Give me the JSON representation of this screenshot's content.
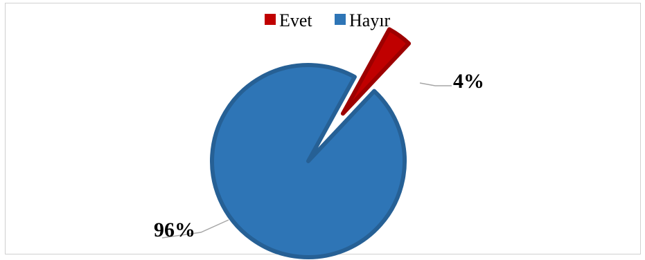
{
  "chart_data": {
    "type": "pie",
    "title": "",
    "categories": [
      "Evet",
      "Hayır"
    ],
    "values": [
      4,
      96
    ],
    "labels": [
      "4%",
      "96%"
    ],
    "colors": [
      "#c00000",
      "#2e75b6"
    ],
    "legend_position": "top",
    "exploded": "Evet"
  }
}
